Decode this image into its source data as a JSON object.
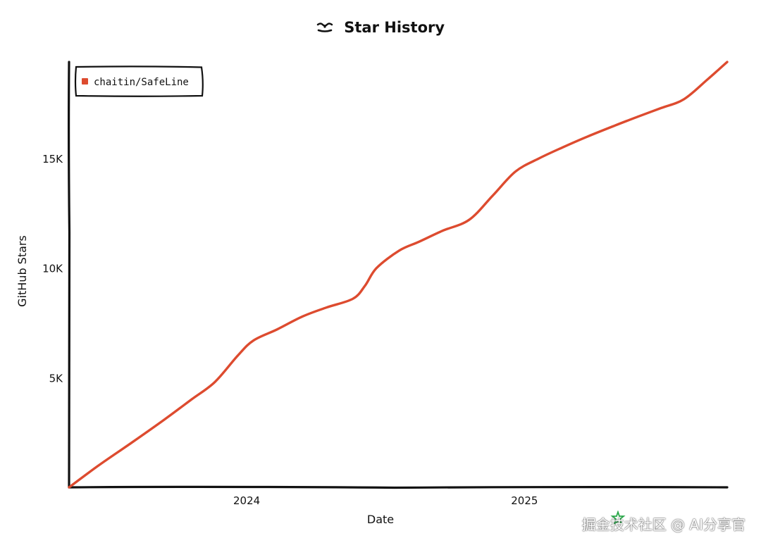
{
  "chart_data": {
    "type": "line",
    "title": "Star History",
    "xlabel": "Date",
    "ylabel": "GitHub Stars",
    "x_ticks": [
      "2024",
      "2025"
    ],
    "y_ticks": [
      "5K",
      "10K",
      "15K"
    ],
    "y_tick_values": [
      5000,
      10000,
      15000
    ],
    "ylim": [
      0,
      19400
    ],
    "xlim": [
      "2023-05-12",
      "2025-09-25"
    ],
    "x_tick_dates": [
      "2024-01-01",
      "2025-01-01"
    ],
    "legend_position": "top-left",
    "grid": false,
    "series": [
      {
        "name": "chaitin/SafeLine",
        "color": "#dd4b2f",
        "points": [
          [
            "2023-05-12",
            0
          ],
          [
            "2023-06-20",
            1000
          ],
          [
            "2023-08-01",
            2000
          ],
          [
            "2023-09-15",
            3100
          ],
          [
            "2023-10-20",
            4000
          ],
          [
            "2023-11-20",
            4800
          ],
          [
            "2023-12-20",
            6000
          ],
          [
            "2024-01-10",
            6700
          ],
          [
            "2024-02-10",
            7200
          ],
          [
            "2024-03-15",
            7800
          ],
          [
            "2024-04-15",
            8200
          ],
          [
            "2024-05-20",
            8600
          ],
          [
            "2024-06-05",
            9200
          ],
          [
            "2024-06-20",
            10000
          ],
          [
            "2024-07-20",
            10800
          ],
          [
            "2024-08-15",
            11200
          ],
          [
            "2024-09-15",
            11700
          ],
          [
            "2024-10-20",
            12200
          ],
          [
            "2024-11-20",
            13300
          ],
          [
            "2024-12-20",
            14400
          ],
          [
            "2025-01-20",
            15000
          ],
          [
            "2025-02-20",
            15500
          ],
          [
            "2025-03-25",
            16000
          ],
          [
            "2025-04-30",
            16500
          ],
          [
            "2025-05-30",
            16900
          ],
          [
            "2025-06-30",
            17300
          ],
          [
            "2025-07-30",
            17700
          ],
          [
            "2025-08-30",
            18600
          ],
          [
            "2025-09-25",
            19400
          ]
        ]
      }
    ]
  },
  "watermark": {
    "text": "掘金技术社区 @ AI分享官"
  },
  "colors": {
    "series": "#dd4b2f",
    "axis": "#111111",
    "background": "#ffffff"
  }
}
